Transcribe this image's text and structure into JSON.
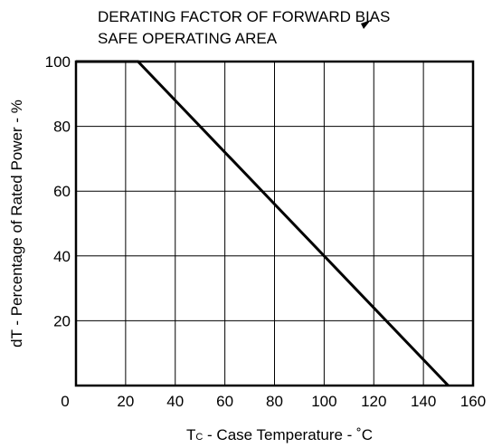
{
  "chart_data": {
    "type": "line",
    "title_lines": [
      "DERATING FACTOR OF FORWARD BIAS",
      "SAFE OPERATING AREA"
    ],
    "xlabel": {
      "main": "T",
      "subscript": "C",
      "rest": " - Case Temperature - ˚C"
    },
    "ylabel": "dT - Percentage of Rated Power - %",
    "xlim": [
      0,
      160
    ],
    "ylim": [
      0,
      100
    ],
    "x_ticks": [
      0,
      20,
      40,
      60,
      80,
      100,
      120,
      140,
      160
    ],
    "y_ticks": [
      20,
      40,
      60,
      80,
      100
    ],
    "grid": true,
    "series": [
      {
        "x": [
          0,
          25,
          150
        ],
        "y": [
          100,
          100,
          0
        ]
      }
    ]
  }
}
